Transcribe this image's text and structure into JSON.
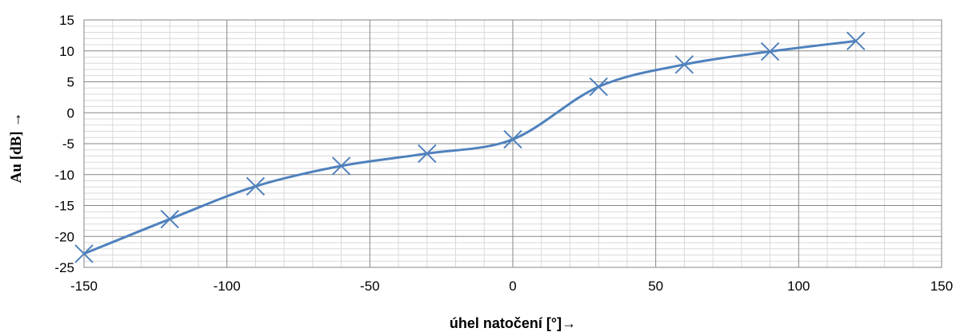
{
  "chart_data": {
    "type": "line",
    "title": "",
    "xlabel": "úhel natočení [°]→",
    "ylabel": "Au [dB] →",
    "xlim": [
      -150,
      150
    ],
    "ylim": [
      -25,
      15
    ],
    "x_ticks": [
      "-150",
      "-100",
      "-50",
      "0",
      "50",
      "100",
      "150"
    ],
    "y_ticks": [
      "15",
      "10",
      "5",
      "0",
      "-5",
      "-10",
      "-15",
      "-20",
      "-25"
    ],
    "grid": true,
    "legend": "none",
    "marker": "x",
    "smooth": true,
    "series": [
      {
        "color": "#4F81BD",
        "x": [
          -150,
          -120,
          -90,
          -60,
          -30,
          0,
          30,
          60,
          90,
          120
        ],
        "y": [
          -22.8,
          -17.2,
          -11.9,
          -8.6,
          -6.6,
          -4.3,
          4.2,
          7.8,
          9.9,
          11.6
        ]
      }
    ]
  }
}
